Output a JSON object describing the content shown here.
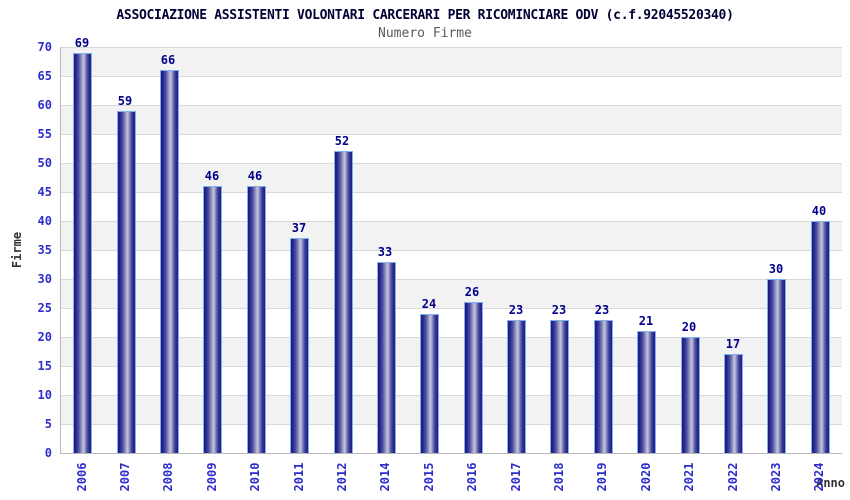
{
  "chart_data": {
    "type": "bar",
    "title": "ASSOCIAZIONE ASSISTENTI VOLONTARI CARCERARI PER RICOMINCIARE ODV (c.f.92045520340)",
    "subtitle": "Numero Firme",
    "xlabel": "Anno",
    "ylabel": "Firme",
    "categories": [
      "2006",
      "2007",
      "2008",
      "2009",
      "2010",
      "2011",
      "2012",
      "2014",
      "2015",
      "2016",
      "2017",
      "2018",
      "2019",
      "2020",
      "2021",
      "2022",
      "2023",
      "2024"
    ],
    "values": [
      69,
      59,
      66,
      46,
      46,
      37,
      52,
      33,
      24,
      26,
      23,
      23,
      23,
      21,
      20,
      17,
      30,
      40
    ],
    "ylim": [
      0,
      70
    ],
    "ytick_step": 5,
    "grid": "horizontal",
    "legend": "none",
    "colors": {
      "bar_border": "#7fb0f0",
      "bar_dark": "#1b1b85",
      "bar_light": "#c6c8e0",
      "value_label": "#00008b",
      "tick_label": "#2d2dcc",
      "band_gray": "#f2f2f2",
      "band_white": "#ffffff",
      "gridline": "#d9d9d9",
      "title": "#000033",
      "subtitle": "#5a5a5a",
      "axis_title": "#333333"
    }
  }
}
